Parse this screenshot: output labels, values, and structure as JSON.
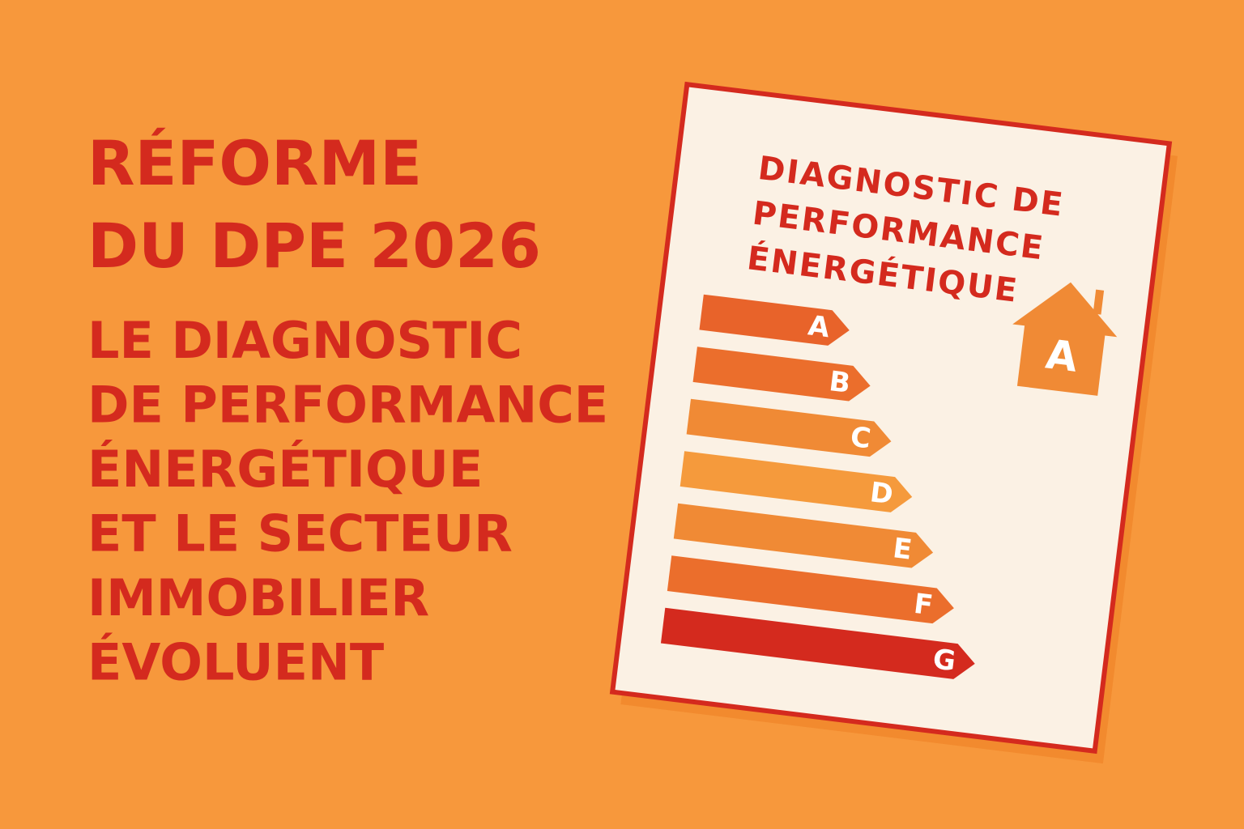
{
  "headline": {
    "title": [
      "RÉFORME",
      "DU DPE 2026"
    ],
    "subtitle": [
      "LE DIAGNOSTIC",
      "DE PERFORMANCE",
      "ÉNERGÉTIQUE",
      "ET LE SECTEUR",
      "IMMOBILIER",
      "ÉVOLUENT"
    ]
  },
  "card": {
    "title": [
      "DIAGNOSTIC DE",
      "PERFORMANCE",
      "ÉNERGÉTIQUE"
    ],
    "ratings": [
      "A",
      "B",
      "C",
      "D",
      "E",
      "F",
      "G"
    ],
    "house_label": "A"
  }
}
